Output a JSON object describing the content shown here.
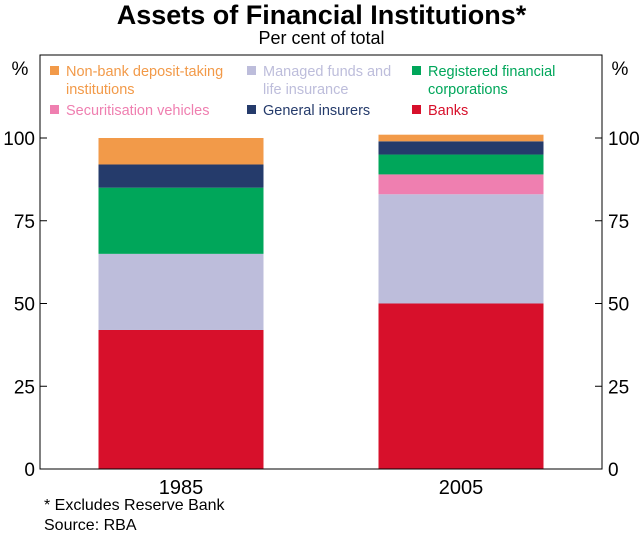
{
  "title": "Assets of Financial Institutions*",
  "subtitle": "Per cent of total",
  "footnote": "*   Excludes Reserve Bank",
  "source": "Source: RBA",
  "chart_data": {
    "type": "bar",
    "stacked": true,
    "categories": [
      "1985",
      "2005"
    ],
    "ylim": [
      0,
      100
    ],
    "yticks": [
      0,
      25,
      50,
      75,
      100
    ],
    "left_axis_unit": "%",
    "right_axis_unit": "%",
    "grid": false,
    "legend_position": "top",
    "series": [
      {
        "name": "Banks",
        "color": "#d7102b",
        "values": [
          42,
          50
        ]
      },
      {
        "name": "Managed funds and life insurance",
        "color": "#bdbddb",
        "values": [
          23,
          33
        ]
      },
      {
        "name": "Securitisation vehicles",
        "color": "#ef7fb0",
        "values": [
          0,
          6
        ]
      },
      {
        "name": "Registered financial corporations",
        "color": "#00a65a",
        "values": [
          20,
          6
        ]
      },
      {
        "name": "General insurers",
        "color": "#253b6b",
        "values": [
          7,
          4
        ]
      },
      {
        "name": "Non-bank deposit-taking institutions",
        "color": "#f29a49",
        "values": [
          8,
          2
        ]
      }
    ],
    "legend": [
      {
        "lines": [
          "Non-bank deposit-taking",
          "institutions"
        ],
        "color": "#f29a49"
      },
      {
        "lines": [
          "Managed funds and",
          "life insurance"
        ],
        "color": "#bdbddb"
      },
      {
        "lines": [
          "Registered financial",
          "corporations"
        ],
        "color": "#00a65a"
      },
      {
        "lines": [
          "Securitisation vehicles"
        ],
        "color": "#ef7fb0"
      },
      {
        "lines": [
          "General insurers"
        ],
        "color": "#253b6b"
      },
      {
        "lines": [
          "Banks"
        ],
        "color": "#d7102b"
      }
    ]
  }
}
